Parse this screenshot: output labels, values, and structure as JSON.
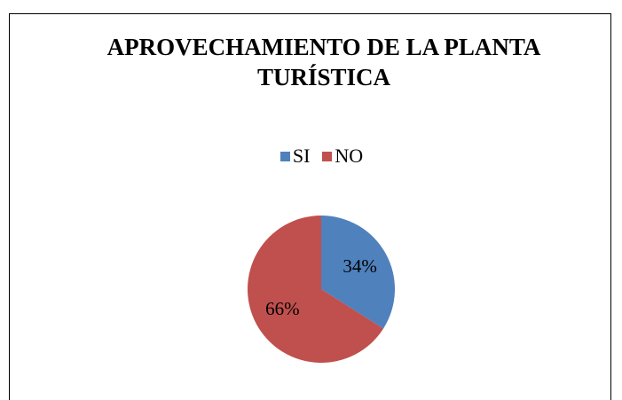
{
  "chart_data": {
    "type": "pie",
    "title": "APROVECHAMIENTO DE LA PLANTA TURÍSTICA",
    "categories": [
      "SI",
      "NO"
    ],
    "values": [
      34,
      66
    ],
    "value_labels": [
      "34%",
      "66%"
    ],
    "colors": [
      "#4f81bd",
      "#c0504d"
    ],
    "legend": "top"
  }
}
